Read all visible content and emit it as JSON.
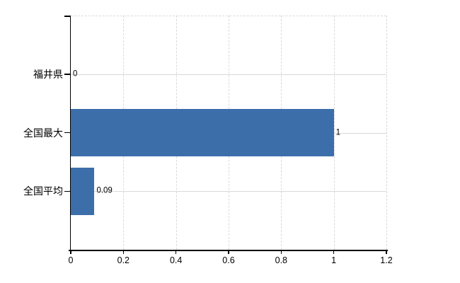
{
  "chart_data": {
    "type": "bar",
    "orientation": "horizontal",
    "categories": [
      "福井県",
      "全国最大",
      "全国平均"
    ],
    "values": [
      0,
      1,
      0.09
    ],
    "value_labels": [
      "0",
      "1",
      "0.09"
    ],
    "x_tick_values": [
      0,
      0.2,
      0.4,
      0.6,
      0.8,
      1,
      1.2
    ],
    "x_tick_labels": [
      "0",
      "0.2",
      "0.4",
      "0.6",
      "0.8",
      "1",
      "1.2"
    ],
    "xlim": [
      0,
      1.2
    ],
    "grid": true,
    "legend_position": "none",
    "bar_color": "#3c6eaa",
    "grid_color": "#d9d9d9",
    "axis_color": "#000000",
    "text_color": "#000000",
    "background_color": "#ffffff"
  }
}
